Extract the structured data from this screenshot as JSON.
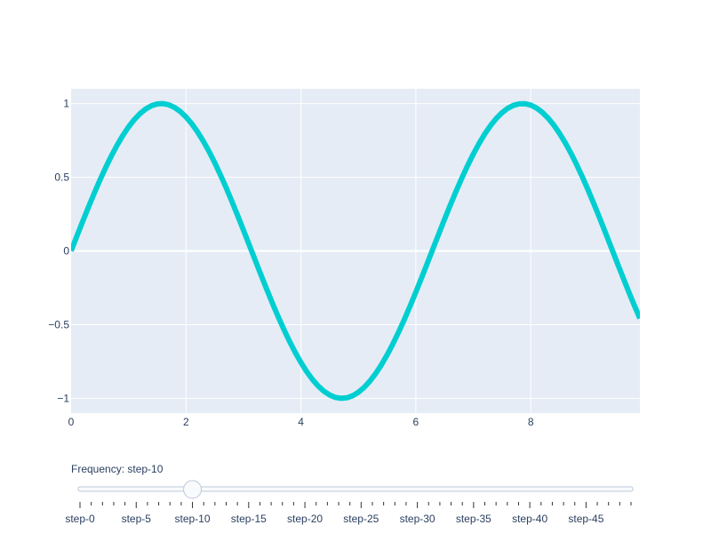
{
  "chart_data": {
    "type": "line",
    "title": "",
    "xlabel": "",
    "ylabel": "",
    "xlim": [
      0,
      9.9
    ],
    "ylim": [
      -1.1,
      1.1
    ],
    "grid": true,
    "x_ticks": [
      0,
      2,
      4,
      6,
      8
    ],
    "x_tick_labels": [
      "0",
      "2",
      "4",
      "6",
      "8"
    ],
    "y_ticks": [
      1,
      0.5,
      0,
      -0.5,
      -1
    ],
    "y_tick_labels": [
      "1",
      "0.5",
      "0",
      "−0.5",
      "−1"
    ],
    "series": [
      {
        "color": "#00CED1",
        "x": [
          0,
          0.1,
          0.2,
          0.3,
          0.4,
          0.5,
          0.6,
          0.7,
          0.8,
          0.9,
          1.0,
          1.1,
          1.2,
          1.3,
          1.4,
          1.5,
          1.6,
          1.7,
          1.8,
          1.9,
          2.0,
          2.1,
          2.2,
          2.3,
          2.4,
          2.5,
          2.6,
          2.7,
          2.8,
          2.9,
          3.0,
          3.1,
          3.2,
          3.3,
          3.4,
          3.5,
          3.6,
          3.7,
          3.8,
          3.9,
          4.0,
          4.1,
          4.2,
          4.3,
          4.4,
          4.5,
          4.6,
          4.7,
          4.8,
          4.9,
          5.0,
          5.1,
          5.2,
          5.3,
          5.4,
          5.5,
          5.6,
          5.7,
          5.8,
          5.9,
          6.0,
          6.1,
          6.2,
          6.3,
          6.4,
          6.5,
          6.6,
          6.7,
          6.8,
          6.9,
          7.0,
          7.1,
          7.2,
          7.3,
          7.4,
          7.5,
          7.6,
          7.7,
          7.8,
          7.9,
          8.0,
          8.1,
          8.2,
          8.3,
          8.4,
          8.5,
          8.6,
          8.7,
          8.8,
          8.9,
          9.0,
          9.1,
          9.2,
          9.3,
          9.4,
          9.5,
          9.6,
          9.7,
          9.8,
          9.9
        ],
        "y": [
          0,
          0.0998,
          0.1987,
          0.2955,
          0.3894,
          0.4794,
          0.5646,
          0.6442,
          0.7174,
          0.7833,
          0.8415,
          0.8912,
          0.932,
          0.9636,
          0.9854,
          0.9975,
          0.9996,
          0.9917,
          0.9738,
          0.9463,
          0.9093,
          0.8632,
          0.8085,
          0.7457,
          0.6755,
          0.5985,
          0.5155,
          0.4274,
          0.335,
          0.2392,
          0.1411,
          0.0416,
          -0.0584,
          -0.1577,
          -0.2555,
          -0.3508,
          -0.4425,
          -0.5298,
          -0.6119,
          -0.6878,
          -0.7568,
          -0.8183,
          -0.8716,
          -0.9162,
          -0.9516,
          -0.9775,
          -0.9937,
          -0.9999,
          -0.9962,
          -0.9825,
          -0.9589,
          -0.9258,
          -0.8835,
          -0.8323,
          -0.7728,
          -0.7055,
          -0.6313,
          -0.5507,
          -0.4646,
          -0.3739,
          -0.2794,
          -0.1822,
          -0.0831,
          0.0168,
          0.1165,
          0.2151,
          0.3115,
          0.4048,
          0.494,
          0.5784,
          0.657,
          0.729,
          0.7937,
          0.8504,
          0.8987,
          0.938,
          0.9679,
          0.9882,
          0.9985,
          0.9989,
          0.9894,
          0.9699,
          0.9407,
          0.9022,
          0.8546,
          0.7985,
          0.7344,
          0.663,
          0.5849,
          0.501,
          0.4121,
          0.319,
          0.2229,
          0.1245,
          0.0248,
          -0.0752,
          -0.1743,
          -0.2718,
          -0.3665,
          -0.4575
        ]
      }
    ]
  },
  "slider": {
    "prefix": "Frequency: ",
    "current": "step-10",
    "active_index": 10,
    "step_count": 50,
    "labels": [
      "step-0",
      "step-5",
      "step-10",
      "step-15",
      "step-20",
      "step-25",
      "step-30",
      "step-35",
      "step-40",
      "step-45"
    ],
    "label_indices": [
      0,
      5,
      10,
      15,
      20,
      25,
      30,
      35,
      40,
      45
    ]
  },
  "colors": {
    "plot_bg": "#e5ecf6",
    "grid": "#ffffff",
    "line": "#00CED1",
    "text": "#2a3f5f",
    "rail": "#f8fafc",
    "rail_border": "#bec8d9"
  }
}
